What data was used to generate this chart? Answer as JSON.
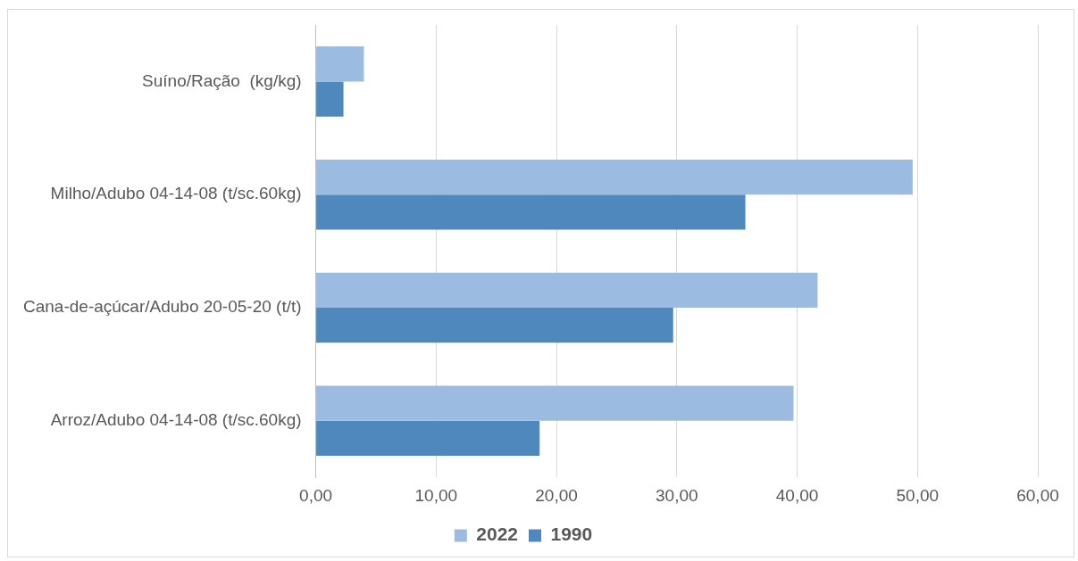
{
  "chart_data": {
    "type": "bar",
    "orientation": "horizontal",
    "categories": [
      "Suíno/Ração  (kg/kg)",
      "Milho/Adubo 04-14-08 (t/sc.60kg)",
      "Cana-de-açúcar/Adubo 20-05-20 (t/t)",
      "Arroz/Adubo 04-14-08 (t/sc.60kg)"
    ],
    "series": [
      {
        "name": "2022",
        "color": "#9bbbe0",
        "values": [
          4.0,
          49.6,
          41.7,
          39.7
        ]
      },
      {
        "name": "1990",
        "color": "#4f88bd",
        "values": [
          2.3,
          35.7,
          29.7,
          18.6
        ]
      }
    ],
    "xlim": [
      0,
      60
    ],
    "xticks": [
      {
        "value": 0,
        "label": "0,00"
      },
      {
        "value": 10,
        "label": "10,00"
      },
      {
        "value": 20,
        "label": "20,00"
      },
      {
        "value": 30,
        "label": "30,00"
      },
      {
        "value": 40,
        "label": "40,00"
      },
      {
        "value": 50,
        "label": "50,00"
      },
      {
        "value": 60,
        "label": "60,00"
      }
    ],
    "grid": "x",
    "legend": "bottom"
  }
}
